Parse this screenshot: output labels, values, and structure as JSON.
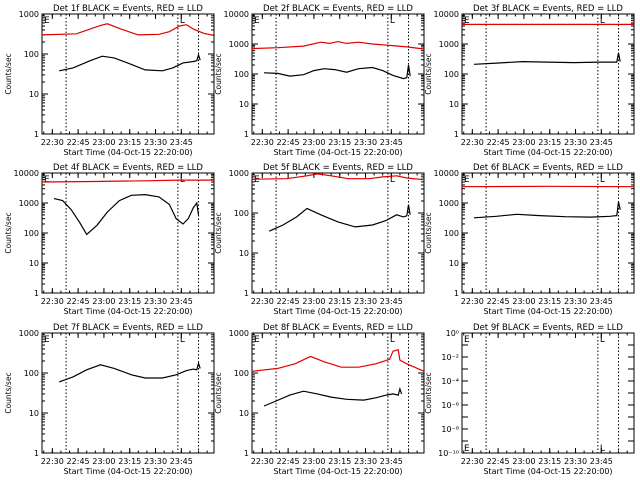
{
  "common": {
    "xlabel": "Start Time (04-Oct-15 22:20:00)",
    "ylabel": "Counts/sec",
    "xtick_labels": [
      "22:30",
      "22:45",
      "23:00",
      "23:15",
      "23:30",
      "23:45"
    ],
    "marker_E": "E",
    "marker_L": "L"
  },
  "chart_data": [
    {
      "type": "line",
      "title": "Det 1f BLACK = Events, RED = LLD",
      "ylim": [
        1,
        1000
      ],
      "yscale": "log",
      "ytick_labels": [
        "1",
        "10",
        "100",
        "1000"
      ],
      "series": [
        {
          "color": "#e00000",
          "points": [
            [
              0,
              300
            ],
            [
              0.2,
              320
            ],
            [
              0.34,
              520
            ],
            [
              0.38,
              570
            ],
            [
              0.46,
              420
            ],
            [
              0.56,
              300
            ],
            [
              0.68,
              310
            ],
            [
              0.74,
              360
            ],
            [
              0.8,
              500
            ],
            [
              0.84,
              540
            ],
            [
              0.88,
              420
            ],
            [
              0.94,
              330
            ],
            [
              1,
              290
            ]
          ]
        },
        {
          "color": "#000000",
          "points": [
            [
              0.1,
              38
            ],
            [
              0.18,
              45
            ],
            [
              0.28,
              68
            ],
            [
              0.35,
              88
            ],
            [
              0.42,
              80
            ],
            [
              0.52,
              55
            ],
            [
              0.6,
              40
            ],
            [
              0.7,
              38
            ],
            [
              0.76,
              45
            ],
            [
              0.82,
              60
            ],
            [
              0.88,
              65
            ],
            [
              0.9,
              68
            ],
            [
              0.91,
              95
            ],
            [
              0.92,
              70
            ]
          ]
        }
      ]
    },
    {
      "type": "line",
      "title": "Det 2f BLACK = Events, RED = LLD",
      "ylim": [
        1,
        10000
      ],
      "yscale": "log",
      "ytick_labels": [
        "1",
        "10",
        "100",
        "1000",
        "10000"
      ],
      "series": [
        {
          "color": "#e00000",
          "points": [
            [
              0,
              700
            ],
            [
              0.15,
              750
            ],
            [
              0.3,
              850
            ],
            [
              0.4,
              1150
            ],
            [
              0.45,
              1050
            ],
            [
              0.5,
              1200
            ],
            [
              0.55,
              1050
            ],
            [
              0.62,
              1150
            ],
            [
              0.7,
              1000
            ],
            [
              0.8,
              900
            ],
            [
              0.9,
              800
            ],
            [
              1,
              680
            ]
          ]
        },
        {
          "color": "#000000",
          "points": [
            [
              0.07,
              110
            ],
            [
              0.15,
              105
            ],
            [
              0.22,
              85
            ],
            [
              0.3,
              95
            ],
            [
              0.36,
              130
            ],
            [
              0.42,
              150
            ],
            [
              0.48,
              140
            ],
            [
              0.55,
              115
            ],
            [
              0.62,
              150
            ],
            [
              0.7,
              165
            ],
            [
              0.76,
              130
            ],
            [
              0.82,
              90
            ],
            [
              0.88,
              70
            ],
            [
              0.9,
              75
            ],
            [
              0.91,
              200
            ],
            [
              0.92,
              85
            ]
          ]
        }
      ]
    },
    {
      "type": "line",
      "title": "Det 3f BLACK = Events, RED = LLD",
      "ylim": [
        1,
        10000
      ],
      "yscale": "log",
      "ytick_labels": [
        "1",
        "10",
        "100",
        "1000",
        "10000"
      ],
      "series": [
        {
          "color": "#e00000",
          "points": [
            [
              0,
              4500
            ],
            [
              0.5,
              4500
            ],
            [
              1,
              4500
            ]
          ]
        },
        {
          "color": "#000000",
          "points": [
            [
              0.07,
              210
            ],
            [
              0.2,
              230
            ],
            [
              0.35,
              260
            ],
            [
              0.5,
              250
            ],
            [
              0.65,
              240
            ],
            [
              0.8,
              250
            ],
            [
              0.9,
              250
            ],
            [
              0.91,
              500
            ],
            [
              0.92,
              260
            ]
          ]
        }
      ]
    },
    {
      "type": "line",
      "title": "Det 4f BLACK = Events, RED = LLD",
      "ylim": [
        1,
        10000
      ],
      "yscale": "log",
      "ytick_labels": [
        "1",
        "10",
        "100",
        "1000",
        "10000"
      ],
      "series": [
        {
          "color": "#e00000",
          "points": [
            [
              0,
              5000
            ],
            [
              0.3,
              5200
            ],
            [
              0.6,
              5500
            ],
            [
              0.8,
              5800
            ],
            [
              1,
              5800
            ]
          ]
        },
        {
          "color": "#000000",
          "points": [
            [
              0.07,
              1400
            ],
            [
              0.12,
              1200
            ],
            [
              0.17,
              600
            ],
            [
              0.22,
              220
            ],
            [
              0.26,
              90
            ],
            [
              0.32,
              180
            ],
            [
              0.38,
              500
            ],
            [
              0.45,
              1200
            ],
            [
              0.52,
              1800
            ],
            [
              0.6,
              1900
            ],
            [
              0.68,
              1600
            ],
            [
              0.74,
              900
            ],
            [
              0.78,
              300
            ],
            [
              0.82,
              200
            ],
            [
              0.85,
              300
            ],
            [
              0.88,
              700
            ],
            [
              0.9,
              1000
            ],
            [
              0.91,
              400
            ]
          ]
        }
      ]
    },
    {
      "type": "line",
      "title": "Det 5f BLACK = Events, RED = LLD",
      "ylim": [
        1,
        1000
      ],
      "yscale": "log",
      "ytick_labels": [
        "1",
        "10",
        "100",
        "1000"
      ],
      "series": [
        {
          "color": "#e00000",
          "points": [
            [
              0,
              700
            ],
            [
              0.2,
              720
            ],
            [
              0.32,
              850
            ],
            [
              0.38,
              950
            ],
            [
              0.46,
              850
            ],
            [
              0.56,
              720
            ],
            [
              0.68,
              720
            ],
            [
              0.76,
              800
            ],
            [
              0.84,
              850
            ],
            [
              0.9,
              750
            ],
            [
              1,
              680
            ]
          ]
        },
        {
          "color": "#000000",
          "points": [
            [
              0.1,
              35
            ],
            [
              0.18,
              50
            ],
            [
              0.26,
              80
            ],
            [
              0.32,
              130
            ],
            [
              0.4,
              90
            ],
            [
              0.5,
              60
            ],
            [
              0.6,
              45
            ],
            [
              0.7,
              50
            ],
            [
              0.78,
              65
            ],
            [
              0.84,
              90
            ],
            [
              0.88,
              80
            ],
            [
              0.9,
              85
            ],
            [
              0.91,
              160
            ],
            [
              0.92,
              90
            ]
          ]
        }
      ]
    },
    {
      "type": "line",
      "title": "Det 6f BLACK = Events, RED = LLD",
      "ylim": [
        1,
        10000
      ],
      "yscale": "log",
      "ytick_labels": [
        "1",
        "10",
        "100",
        "1000",
        "10000"
      ],
      "series": [
        {
          "color": "#e00000",
          "points": [
            [
              0,
              3500
            ],
            [
              0.5,
              3600
            ],
            [
              1,
              3500
            ]
          ]
        },
        {
          "color": "#000000",
          "points": [
            [
              0.07,
              320
            ],
            [
              0.2,
              360
            ],
            [
              0.32,
              420
            ],
            [
              0.45,
              380
            ],
            [
              0.6,
              350
            ],
            [
              0.75,
              340
            ],
            [
              0.86,
              360
            ],
            [
              0.9,
              380
            ],
            [
              0.91,
              1100
            ],
            [
              0.92,
              600
            ]
          ]
        }
      ]
    },
    {
      "type": "line",
      "title": "Det 7f BLACK = Events, RED = LLD",
      "ylim": [
        1,
        1000
      ],
      "yscale": "log",
      "ytick_labels": [
        "1",
        "10",
        "100",
        "1000"
      ],
      "series": [
        {
          "color": "#000000",
          "points": [
            [
              0.1,
              60
            ],
            [
              0.18,
              80
            ],
            [
              0.26,
              120
            ],
            [
              0.34,
              160
            ],
            [
              0.42,
              130
            ],
            [
              0.52,
              90
            ],
            [
              0.6,
              75
            ],
            [
              0.7,
              75
            ],
            [
              0.78,
              90
            ],
            [
              0.84,
              115
            ],
            [
              0.88,
              125
            ],
            [
              0.9,
              120
            ],
            [
              0.91,
              175
            ],
            [
              0.92,
              130
            ]
          ]
        }
      ]
    },
    {
      "type": "line",
      "title": "Det 8f BLACK = Events, RED = LLD",
      "ylim": [
        1,
        1000
      ],
      "yscale": "log",
      "ytick_labels": [
        "1",
        "10",
        "100",
        "1000"
      ],
      "series": [
        {
          "color": "#e00000",
          "points": [
            [
              0,
              110
            ],
            [
              0.15,
              130
            ],
            [
              0.25,
              170
            ],
            [
              0.34,
              260
            ],
            [
              0.42,
              190
            ],
            [
              0.52,
              140
            ],
            [
              0.62,
              140
            ],
            [
              0.72,
              170
            ],
            [
              0.8,
              220
            ],
            [
              0.82,
              350
            ],
            [
              0.85,
              380
            ],
            [
              0.86,
              210
            ],
            [
              0.9,
              170
            ],
            [
              1,
              110
            ]
          ]
        },
        {
          "color": "#000000",
          "points": [
            [
              0.07,
              15
            ],
            [
              0.14,
              20
            ],
            [
              0.22,
              28
            ],
            [
              0.3,
              35
            ],
            [
              0.38,
              30
            ],
            [
              0.46,
              25
            ],
            [
              0.55,
              22
            ],
            [
              0.65,
              21
            ],
            [
              0.72,
              24
            ],
            [
              0.78,
              28
            ],
            [
              0.82,
              30
            ],
            [
              0.85,
              28
            ],
            [
              0.86,
              40
            ],
            [
              0.87,
              30
            ]
          ]
        }
      ]
    },
    {
      "type": "line",
      "title": "Det 9f BLACK = Events, RED = LLD",
      "ylim": [
        1e-10,
        1
      ],
      "yscale": "log",
      "ytick_labels": [
        "10⁰",
        "10⁻²",
        "10⁻⁴",
        "10⁻⁶",
        "10⁻⁸",
        "10⁻¹⁰"
      ],
      "series": []
    }
  ]
}
